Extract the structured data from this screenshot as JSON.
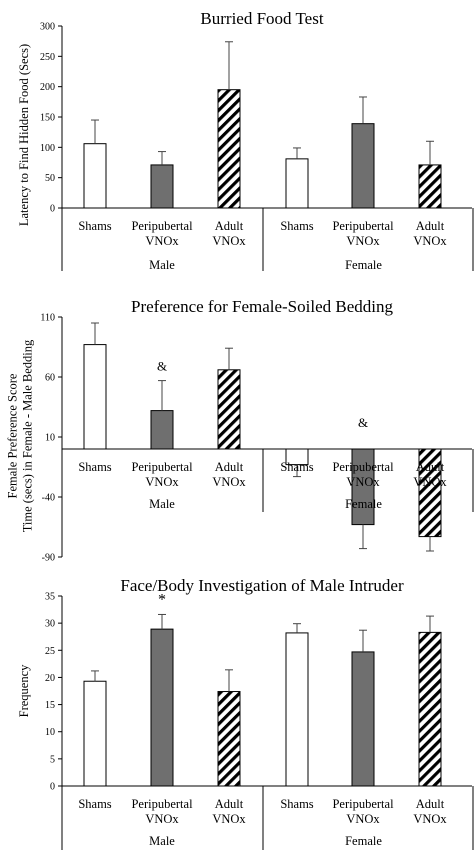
{
  "colors": {
    "sham": "#ffffff",
    "peripubertal": "#6f6f6f",
    "adult": "hatched-black-white",
    "axis": "#000000"
  },
  "chart_data": [
    {
      "type": "bar",
      "title": "Burried Food Test",
      "ylabel": "Latency to Find Hidden Food (Secs)",
      "ylim": [
        0,
        300
      ],
      "yticks": [
        0,
        50,
        100,
        150,
        200,
        250,
        300
      ],
      "tick_labels": [
        "0",
        "50",
        "100",
        "150",
        "200",
        "250",
        "300"
      ],
      "groups": [
        "Male",
        "Female"
      ],
      "categories": [
        "Shams",
        "Peripubertal VNOx",
        "Adult VNOx"
      ],
      "category_lines": [
        [
          "Shams"
        ],
        [
          "Peripubertal",
          "VNOx"
        ],
        [
          "Adult",
          "VNOx"
        ]
      ],
      "values": [
        [
          106,
          71,
          195
        ],
        [
          81,
          139,
          71
        ]
      ],
      "errors": [
        [
          39,
          22,
          79
        ],
        [
          18,
          44,
          39
        ]
      ],
      "annotations": [],
      "grid": false,
      "legend": "none"
    },
    {
      "type": "bar",
      "title": "Preference for Female-Soiled Bedding",
      "ylabel": "Female Preference Score Time (secs) in Female - Male Bedding",
      "ylabel_lines": [
        "Female Preference Score",
        "Time (secs) in Female - Male Bedding"
      ],
      "ylim": [
        -90,
        110
      ],
      "yticks": [
        -90,
        -40,
        10,
        60,
        110
      ],
      "tick_labels": [
        "-90",
        "-40",
        "10",
        "60",
        "110"
      ],
      "groups": [
        "Male",
        "Female"
      ],
      "categories": [
        "Shams",
        "Peripubertal VNOx",
        "Adult VNOx"
      ],
      "category_lines": [
        [
          "Shams"
        ],
        [
          "Peripubertal",
          "VNOx"
        ],
        [
          "Adult",
          "VNOx"
        ]
      ],
      "values": [
        [
          87,
          32,
          66
        ],
        [
          -13,
          -63,
          -73
        ]
      ],
      "errors": [
        [
          18,
          25,
          18
        ],
        [
          10,
          20,
          12
        ]
      ],
      "annotations": [
        {
          "group": 0,
          "index": 1,
          "text": "&"
        },
        {
          "group": 1,
          "index": 1,
          "text": "&"
        }
      ],
      "grid": false,
      "legend": "none"
    },
    {
      "type": "bar",
      "title": "Face/Body Investigation of Male Intruder",
      "ylabel": "Frequency",
      "ylim": [
        0,
        35
      ],
      "yticks": [
        0,
        5,
        10,
        15,
        20,
        25,
        30,
        35
      ],
      "tick_labels": [
        "0",
        "5",
        "10",
        "15",
        "20",
        "25",
        "30",
        "35"
      ],
      "groups": [
        "Male",
        "Female"
      ],
      "categories": [
        "Shams",
        "Peripubertal VNOx",
        "Adult VNOx"
      ],
      "category_lines": [
        [
          "Shams"
        ],
        [
          "Peripubertal",
          "VNOx"
        ],
        [
          "Adult",
          "VNOx"
        ]
      ],
      "values": [
        [
          19.3,
          28.9,
          17.4
        ],
        [
          28.2,
          24.7,
          28.3
        ]
      ],
      "errors": [
        [
          1.9,
          2.7,
          4.0
        ],
        [
          1.7,
          4.0,
          3.0
        ]
      ],
      "annotations": [
        {
          "group": 0,
          "index": 1,
          "text": "*"
        }
      ],
      "grid": false,
      "legend": "none"
    }
  ]
}
